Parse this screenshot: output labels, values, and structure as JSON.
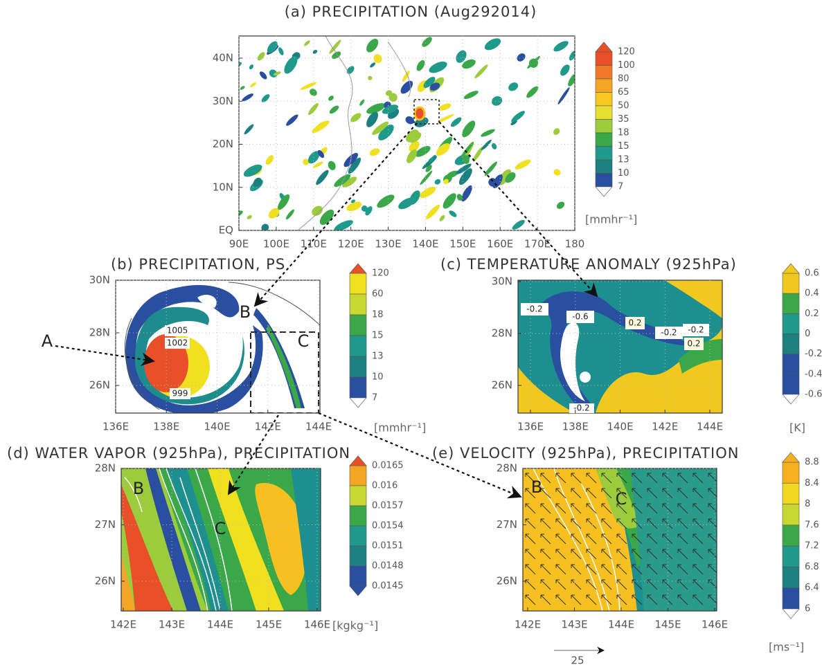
{
  "panels": [
    {
      "title": "(a) PRECIPITATION (Aug292014)",
      "yticks": [
        "40N",
        "30N",
        "20N",
        "10N",
        "EQ"
      ],
      "xticks": [
        "90E",
        "100E",
        "110E",
        "120E",
        "130E",
        "140E",
        "150E",
        "160E",
        "170E",
        "180"
      ],
      "colorbar": [
        "120",
        "100",
        "80",
        "65",
        "50",
        "35",
        "18",
        "15",
        "13",
        "10",
        "7"
      ],
      "unit": "[mmhr⁻¹]"
    },
    {
      "title": "(b) PRECIPITATION, PS",
      "yticks": [
        "30N",
        "28N",
        "26N"
      ],
      "xticks": [
        "136E",
        "138E",
        "140E",
        "142E",
        "144E"
      ],
      "colorbar": [
        "120",
        "60",
        "18",
        "15",
        "13",
        "10",
        "7"
      ],
      "unit": "[mmhr⁻¹]",
      "annotations": [
        "1005",
        "1002",
        "999",
        "B",
        "C"
      ]
    },
    {
      "title": "(c) TEMPERATURE ANOMALY (925hPa)",
      "yticks": [
        "30N",
        "28N",
        "26N"
      ],
      "xticks": [
        "136E",
        "138E",
        "140E",
        "142E",
        "144E"
      ],
      "colorbar": [
        "0.6",
        "0.4",
        "0.2",
        "0",
        "-0.2",
        "-0.4",
        "-0.6"
      ],
      "unit": "[K]",
      "annotations": [
        "-0.2",
        "-0.6",
        "0.2",
        "-0.2",
        "-0.2",
        "0.2",
        "-0.2"
      ]
    },
    {
      "title": "(d) WATER VAPOR (925hPa), PRECIPITATION",
      "yticks": [
        "28N",
        "27N",
        "26N"
      ],
      "xticks": [
        "142E",
        "143E",
        "144E",
        "145E",
        "146E"
      ],
      "colorbar": [
        "0.0165",
        "0.016",
        "0.0157",
        "0.0154",
        "0.0151",
        "0.0148",
        "0.0145"
      ],
      "unit": "[kgkg⁻¹]",
      "annotations": [
        "B",
        "C"
      ]
    },
    {
      "title": "(e) VELOCITY (925hPa), PRECIPITATION",
      "yticks": [
        "28N",
        "27N",
        "26N"
      ],
      "xticks": [
        "142E",
        "143E",
        "144E",
        "145E",
        "146E"
      ],
      "colorbar": [
        "8.8",
        "8.4",
        "8",
        "7.6",
        "7.2",
        "6.8",
        "6.4",
        "6"
      ],
      "unit": "[ms⁻¹]",
      "annotations": [
        "B",
        "C"
      ],
      "reference_vector": "25"
    }
  ],
  "label_a": "A"
}
